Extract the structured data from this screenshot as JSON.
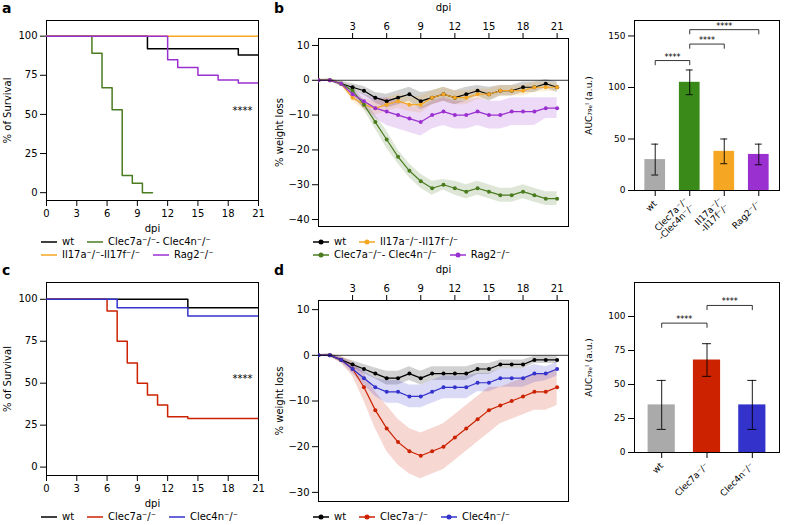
{
  "chart_data": [
    {
      "type": "step",
      "title": "a",
      "xlabel": "dpi",
      "ylabel": "% of Survival",
      "xlim": [
        0,
        21
      ],
      "ylim": [
        -5,
        110
      ],
      "xticks": [
        0,
        3,
        6,
        9,
        12,
        15,
        18,
        21
      ],
      "yticks": [
        0,
        25,
        50,
        75,
        100
      ],
      "legend": "bottom",
      "annotations": [
        "****"
      ],
      "series": [
        {
          "name": "wt",
          "color": "#000000",
          "x": [
            0,
            10,
            10,
            19,
            19,
            21
          ],
          "values": [
            100,
            100,
            92,
            92,
            88,
            88
          ]
        },
        {
          "name": "Clec7a⁻/⁻- Clec4n⁻/⁻",
          "color": "#4a7c1f",
          "x": [
            0,
            4.5,
            4.5,
            5.5,
            5.5,
            6.5,
            6.5,
            7.5,
            7.5,
            8.5,
            8.5,
            9.5,
            9.5,
            10.5
          ],
          "values": [
            100,
            100,
            89,
            89,
            67,
            67,
            53,
            53,
            11,
            11,
            6,
            6,
            0,
            0
          ]
        },
        {
          "name": "Il17a⁻/⁻-Il17f⁻/⁻",
          "color": "#f5a623",
          "x": [
            0,
            10,
            10,
            19,
            19,
            21
          ],
          "values": [
            100,
            100,
            100,
            100,
            100,
            100
          ]
        },
        {
          "name": "Rag2⁻/⁻",
          "color": "#9b30d0",
          "x": [
            0,
            12,
            12,
            13,
            13,
            15,
            15,
            17,
            17,
            19,
            19,
            21
          ],
          "values": [
            100,
            100,
            85,
            85,
            80,
            80,
            75,
            75,
            72,
            72,
            70,
            70
          ]
        }
      ]
    },
    {
      "type": "line",
      "title": "b",
      "xlabel": "dpi",
      "ylabel": "% weight loss",
      "xlim": [
        0,
        22
      ],
      "ylim": [
        -42,
        12
      ],
      "xticks": [
        3,
        6,
        9,
        12,
        15,
        18,
        21
      ],
      "yticks": [
        -40,
        -30,
        -20,
        -10,
        0,
        10
      ],
      "legend": "bottom",
      "marker": "o",
      "hline": 0,
      "x": [
        0,
        1,
        2,
        3,
        4,
        5,
        6,
        7,
        8,
        9,
        10,
        11,
        12,
        13,
        14,
        15,
        16,
        17,
        18,
        19,
        20,
        21
      ],
      "series": [
        {
          "name": "wt",
          "color": "#000000",
          "values": [
            0,
            0,
            -1,
            -2,
            -3,
            -5,
            -6,
            -5,
            -4,
            -6,
            -5,
            -4,
            -5,
            -4,
            -3,
            -4,
            -3,
            -3,
            -2,
            -2,
            -1,
            -2
          ],
          "error": [
            0.3,
            0.4,
            0.7,
            1,
            1.2,
            1.5,
            2,
            2,
            2,
            2.5,
            2,
            2,
            2,
            2,
            1.5,
            2,
            1.5,
            1.5,
            1.5,
            1.5,
            1.2,
            1.5
          ]
        },
        {
          "name": "Il17a⁻/⁻-Il17f⁻/⁻",
          "color": "#f5a623",
          "values": [
            0,
            0,
            -1,
            -5,
            -7,
            -8,
            -7,
            -6,
            -7,
            -7,
            -5,
            -4,
            -5,
            -5,
            -4,
            -4,
            -3,
            -3,
            -3,
            -2,
            -2,
            -2
          ],
          "error": [
            0.2,
            0.3,
            0.5,
            1,
            1.5,
            2,
            2,
            2,
            2,
            2.5,
            2,
            2,
            2,
            2,
            1.5,
            1.5,
            1.5,
            1.5,
            1.5,
            1.5,
            1.2,
            1.2
          ]
        },
        {
          "name": "Clec7a⁻/⁻- Clec4n⁻/⁻",
          "color": "#4a7c1f",
          "values": [
            0,
            0,
            -1,
            -3,
            -7,
            -12,
            -17,
            -22,
            -26,
            -29,
            -31,
            -30,
            -31,
            -32,
            -31,
            -32,
            -33,
            -33,
            -32,
            -33,
            -34,
            -34
          ],
          "error": [
            0.2,
            0.3,
            0.5,
            1,
            1.5,
            2,
            2.5,
            2,
            2,
            2,
            2,
            1.5,
            2,
            2,
            2,
            2,
            2,
            2,
            2,
            2,
            2,
            2
          ]
        },
        {
          "name": "Rag2⁻/⁻",
          "color": "#9b30d0",
          "values": [
            0,
            0,
            -1,
            -4,
            -6,
            -8,
            -9,
            -10,
            -11,
            -12,
            -10,
            -9,
            -10,
            -10,
            -9,
            -10,
            -10,
            -9,
            -9,
            -9,
            -8,
            -8
          ],
          "error": [
            0.2,
            0.3,
            0.5,
            1,
            2,
            3,
            4,
            4,
            4,
            4,
            4,
            4,
            4,
            4,
            4,
            4,
            4,
            4,
            4,
            4,
            3,
            3
          ]
        }
      ]
    },
    {
      "type": "bar",
      "ylabel": "AUC₇₉ₑᴵ (a.u.)",
      "categories": [
        "wt",
        "Clec7a⁻/⁻\n-Clec4n⁻/⁻",
        "Il17a⁻/⁻\n-Il17f⁻/⁻",
        "Rag2⁻/⁻"
      ],
      "values": [
        30,
        105,
        38,
        35
      ],
      "errors": [
        15,
        12,
        12,
        10
      ],
      "colors": [
        "#aaaaaa",
        "#3a8a1a",
        "#f5a623",
        "#9b30d0"
      ],
      "ylim": [
        0,
        165
      ],
      "yticks": [
        0,
        50,
        100,
        150
      ],
      "significance": [
        {
          "x1": "wt",
          "x2": "Clec7a⁻/⁻\n-Clec4n⁻/⁻",
          "y": 122,
          "label": "****"
        },
        {
          "x1": "Clec7a⁻/⁻\n-Clec4n⁻/⁻",
          "x2": "Il17a⁻/⁻\n-Il17f⁻/⁻",
          "y": 138,
          "label": "****"
        },
        {
          "x1": "Clec7a⁻/⁻\n-Clec4n⁻/⁻",
          "x2": "Rag2⁻/⁻",
          "y": 152,
          "label": "****"
        }
      ]
    },
    {
      "type": "step",
      "title": "c",
      "xlabel": "dpi",
      "ylabel": "% of Survival",
      "xlim": [
        0,
        21
      ],
      "ylim": [
        -5,
        110
      ],
      "xticks": [
        0,
        3,
        6,
        9,
        12,
        15,
        18,
        21
      ],
      "yticks": [
        0,
        25,
        50,
        75,
        100
      ],
      "legend": "bottom",
      "annotations": [
        "****"
      ],
      "series": [
        {
          "name": "wt",
          "color": "#000000",
          "x": [
            0,
            14,
            14,
            21
          ],
          "values": [
            100,
            100,
            95,
            95
          ]
        },
        {
          "name": "Clec7a⁻/⁻",
          "color": "#cc2200",
          "x": [
            0,
            6,
            6,
            7,
            7,
            8,
            8,
            9,
            9,
            10,
            10,
            11,
            11,
            12,
            12,
            14,
            14,
            21
          ],
          "values": [
            100,
            100,
            93,
            93,
            75,
            75,
            62,
            62,
            50,
            50,
            43,
            43,
            37,
            37,
            30,
            30,
            29,
            29
          ]
        },
        {
          "name": "Clec4n⁻/⁻",
          "color": "#3333cc",
          "x": [
            0,
            7,
            7,
            14,
            14,
            21
          ],
          "values": [
            100,
            100,
            95,
            95,
            90,
            90
          ]
        }
      ]
    },
    {
      "type": "line",
      "title": "d",
      "xlabel": "dpi",
      "ylabel": "% weight loss",
      "xlim": [
        0,
        22
      ],
      "ylim": [
        -32,
        12
      ],
      "xticks": [
        3,
        6,
        9,
        12,
        15,
        18,
        21
      ],
      "yticks": [
        -30,
        -20,
        -10,
        0,
        10
      ],
      "legend": "bottom",
      "marker": "o",
      "hline": 0,
      "x": [
        0,
        1,
        2,
        3,
        4,
        5,
        6,
        7,
        8,
        9,
        10,
        11,
        12,
        13,
        14,
        15,
        16,
        17,
        18,
        19,
        20,
        21
      ],
      "series": [
        {
          "name": "wt",
          "color": "#000000",
          "values": [
            0,
            0,
            -1,
            -2,
            -3,
            -4,
            -5,
            -5,
            -4,
            -5,
            -4,
            -4,
            -4,
            -4,
            -3,
            -3,
            -2,
            -2,
            -2,
            -1,
            -1,
            -1
          ],
          "error": [
            0.2,
            0.3,
            0.5,
            0.8,
            1,
            1.2,
            1.5,
            1.5,
            1.5,
            1.5,
            1.5,
            1.5,
            1.5,
            1.5,
            1.2,
            1.2,
            1,
            1,
            1,
            0.8,
            0.8,
            0.8
          ]
        },
        {
          "name": "Clec7a⁻/⁻",
          "color": "#cc2200",
          "values": [
            0,
            0,
            -1,
            -3,
            -7,
            -12,
            -16,
            -19,
            -21,
            -22,
            -21,
            -20,
            -18,
            -16,
            -14,
            -12,
            -11,
            -10,
            -9,
            -8,
            -8,
            -7
          ],
          "error": [
            0.2,
            0.3,
            0.8,
            1.5,
            3,
            4,
            5,
            5,
            5,
            5,
            5,
            5,
            5,
            5,
            5,
            5,
            4,
            4,
            4,
            4,
            4,
            4
          ]
        },
        {
          "name": "Clec4n⁻/⁻",
          "color": "#3333cc",
          "values": [
            0,
            0,
            -1,
            -3,
            -5,
            -7,
            -8,
            -8,
            -9,
            -9,
            -8,
            -7,
            -7,
            -7,
            -6,
            -6,
            -5,
            -5,
            -5,
            -4,
            -4,
            -3
          ],
          "error": [
            0.2,
            0.3,
            0.5,
            1,
            1.5,
            2,
            2.5,
            2.5,
            2.5,
            2.5,
            2.5,
            2.5,
            2.5,
            2.5,
            2,
            2,
            2,
            2,
            2,
            2,
            1.5,
            1.5
          ]
        }
      ]
    },
    {
      "type": "bar",
      "ylabel": "AUC₇₉ₑᴵ (a.u.)",
      "categories": [
        "wt",
        "Clec7a⁻/⁻",
        "Clec4n⁻/⁻"
      ],
      "values": [
        35,
        68,
        35
      ],
      "errors": [
        18,
        12,
        18
      ],
      "colors": [
        "#aaaaaa",
        "#cc2200",
        "#3333cc"
      ],
      "ylim": [
        0,
        125
      ],
      "yticks": [
        0,
        25,
        50,
        75,
        100
      ],
      "significance": [
        {
          "x1": "wt",
          "x2": "Clec7a⁻/⁻",
          "y": 92,
          "label": "****"
        },
        {
          "x1": "Clec7a⁻/⁻",
          "x2": "Clec4n⁻/⁻",
          "y": 105,
          "label": "****"
        }
      ]
    }
  ]
}
